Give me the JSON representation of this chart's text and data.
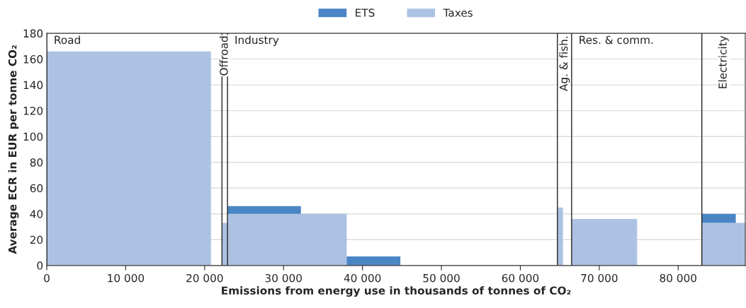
{
  "chart_data": {
    "type": "area",
    "stacked": true,
    "xlabel": "Emissions from energy use in thousands of tonnes of CO₂",
    "ylabel": "Average ECR in EUR per tonne CO₂",
    "x": [
      0,
      20800,
      20800,
      22200,
      22200,
      22900,
      22900,
      32200,
      32200,
      38000,
      38000,
      44800,
      44800,
      64700,
      64700,
      65400,
      65400,
      66500,
      66500,
      74800,
      74800,
      83000,
      83000,
      87300,
      87300,
      88500
    ],
    "series": [
      {
        "name": "Taxes",
        "color": "#adc2e3",
        "values": [
          166,
          166,
          0,
          0,
          33,
          33,
          40,
          40,
          40,
          40,
          0,
          0,
          0,
          0,
          45,
          45,
          0,
          0,
          36,
          36,
          0,
          0,
          33,
          33,
          33,
          33
        ]
      },
      {
        "name": "ETS",
        "color": "#4a86c5",
        "values": [
          null,
          null,
          null,
          null,
          null,
          null,
          6,
          6,
          null,
          null,
          7,
          7,
          null,
          null,
          null,
          null,
          null,
          null,
          null,
          null,
          null,
          null,
          7,
          7,
          null,
          null
        ]
      }
    ],
    "ref_lines": [
      {
        "axis": "x",
        "value": 0,
        "label": "Road"
      },
      {
        "axis": "x",
        "value": 22200,
        "label": "Offroad"
      },
      {
        "axis": "x",
        "value": 22900,
        "label": "Industry"
      },
      {
        "axis": "x",
        "value": 64700,
        "label": "Ag. & fish."
      },
      {
        "axis": "x",
        "value": 66500,
        "label": "Res. & comm."
      },
      {
        "axis": "x",
        "value": 83000,
        "label": "Electricity"
      }
    ],
    "xlim": [
      0,
      88500
    ],
    "xticks": [
      0,
      {
        "value": 10000,
        "label": "10 000"
      },
      {
        "value": 20000,
        "label": "20 000"
      },
      {
        "value": 30000,
        "label": "30 000"
      },
      {
        "value": 40000,
        "label": "40 000"
      },
      {
        "value": 50000,
        "label": "50 000"
      },
      {
        "value": 60000,
        "label": "60 000"
      },
      {
        "value": 70000,
        "label": "70 000"
      },
      {
        "value": 80000,
        "label": "80 000"
      }
    ],
    "ylim": [
      0,
      180
    ],
    "yticks": [
      0,
      20,
      40,
      60,
      80,
      100,
      120,
      140,
      160,
      180
    ],
    "grid": "y",
    "legend": "top"
  }
}
